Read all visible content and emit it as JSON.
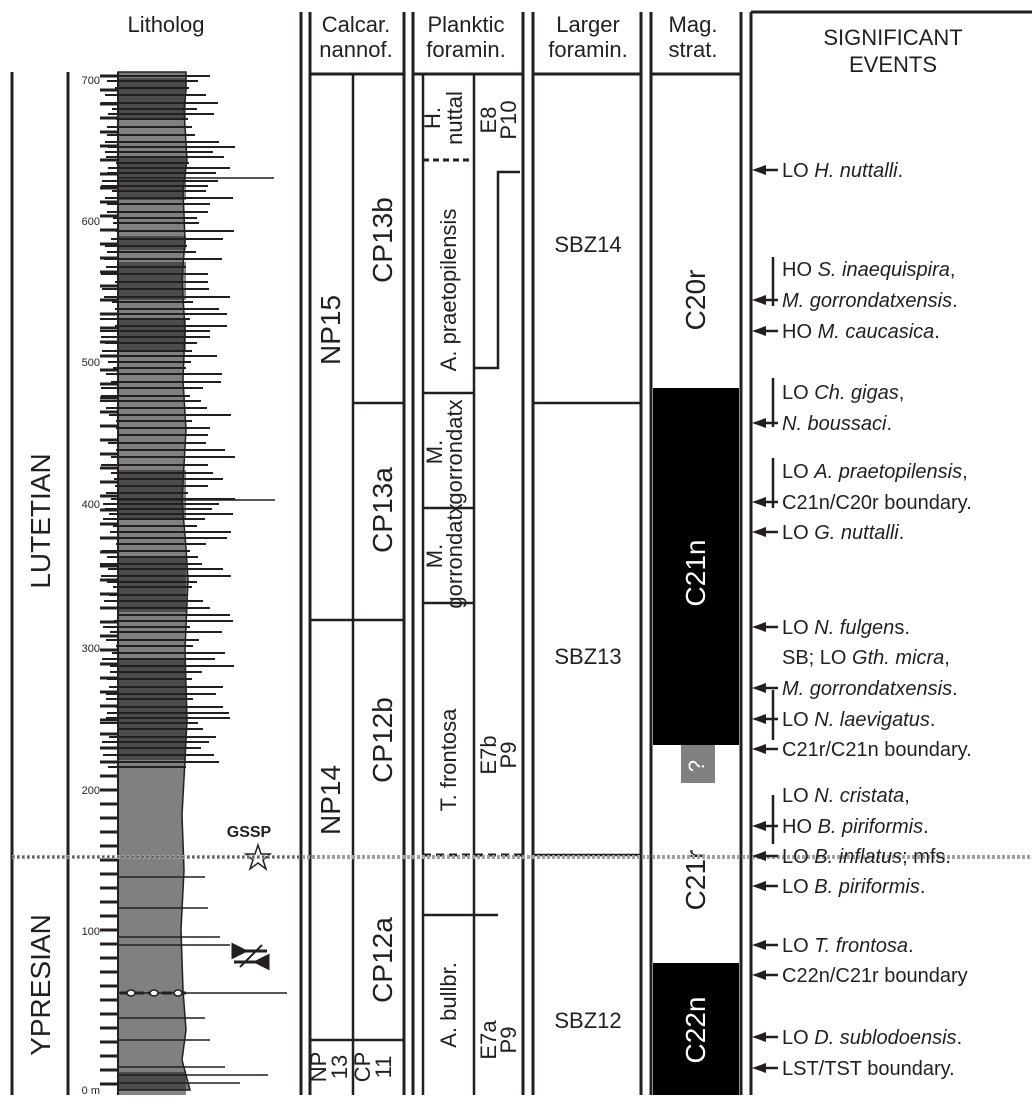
{
  "headers": {
    "litholog": "Litholog",
    "calcar_1": "Calcar.",
    "calcar_2": "nannof.",
    "plank_1": "Planktic",
    "plank_2": "foramin.",
    "larger_1": "Larger",
    "larger_2": "foramin.",
    "mag_1": "Mag.",
    "mag_2": "strat.",
    "sig_1": "SIGNIFICANT",
    "sig_2": "EVENTS"
  },
  "stages": {
    "lutetian": "LUTETIAN",
    "ypresian": "YPRESIAN"
  },
  "scale": {
    "ticks": [
      "700",
      "600",
      "500",
      "400",
      "300",
      "200",
      "100",
      "0 m"
    ]
  },
  "gssp": "GSSP",
  "nanno": {
    "np15": "NP15",
    "np14": "NP14",
    "np13a": "NP",
    "np13b": "13",
    "cp13b": "CP13b",
    "cp13a": "CP13a",
    "cp12b": "CP12b",
    "cp12a": "CP12a",
    "cp11a": "CP",
    "cp11b": "11"
  },
  "plank": {
    "h1": "H.",
    "h2": "nuttal",
    "praeto": "A. praetopilensis",
    "mgor1": "M.",
    "mgor2": "gorrondatx",
    "mgor3": "M.",
    "mgor4": "gorrondatx",
    "frontosa": "T. frontosa",
    "bullbr": "A. bullbr.",
    "e8": "E8",
    "p10": "P10",
    "e7b": "E7b",
    "p9a": "P9",
    "e7a": "E7a",
    "p9b": "P9"
  },
  "larger": {
    "sbz14": "SBZ14",
    "sbz13": "SBZ13",
    "sbz12": "SBZ12"
  },
  "mag": {
    "c20r": "C20r",
    "c21n": "C21n",
    "q": "?",
    "c21r": "C21r",
    "c22n": "C22n"
  },
  "events": [
    {
      "pre": "LO ",
      "it": "H. nuttalli",
      "post": "."
    },
    {
      "pre": "HO ",
      "it": "S. inaequispira",
      "post": ","
    },
    {
      "pre": "",
      "it": "M. gorrondatxensis",
      "post": "."
    },
    {
      "pre": "HO ",
      "it": "M. caucasica",
      "post": "."
    },
    {
      "pre": "LO ",
      "it": "Ch. gigas",
      "post": ","
    },
    {
      "pre": "",
      "it": "N. boussaci",
      "post": "."
    },
    {
      "pre": "LO ",
      "it": "A. praetopilensis",
      "post": ","
    },
    {
      "pre": "C21n/C20r boundary.",
      "it": "",
      "post": ""
    },
    {
      "pre": "LO ",
      "it": "G. nuttalli",
      "post": "."
    },
    {
      "pre": "LO ",
      "it": "N. fulgen",
      "post": "s."
    },
    {
      "pre": "SB; LO ",
      "it": "Gth. micra",
      "post": ","
    },
    {
      "pre": "",
      "it": "M. gorrondatxensis",
      "post": "."
    },
    {
      "pre": "LO ",
      "it": "N. laevigatus",
      "post": "."
    },
    {
      "pre": "C21r/C21n boundary.",
      "it": "",
      "post": ""
    },
    {
      "pre": "LO ",
      "it": "N. cristata",
      "post": ","
    },
    {
      "pre": "HO ",
      "it": "B. piriformis",
      "post": "."
    },
    {
      "pre": "LO ",
      "it": "B. inflatus",
      "post": "; mfs."
    },
    {
      "pre": "LO ",
      "it": "B. piriformis",
      "post": "."
    },
    {
      "pre": "LO ",
      "it": "T. frontosa",
      "post": "."
    },
    {
      "pre": "C22n/C21r boundary",
      "it": "",
      "post": ""
    },
    {
      "pre": "LO ",
      "it": "D. sublodoensis",
      "post": "."
    },
    {
      "pre": "LST/TST boundary.",
      "it": "",
      "post": ""
    }
  ]
}
